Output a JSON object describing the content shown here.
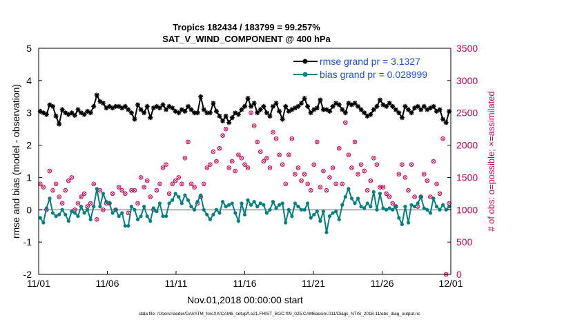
{
  "chart_data": {
    "type": "line",
    "title_line1": "Tropics 182434 / 183799 = 99.257%",
    "title_line2": "SAT_V_WIND_COMPONENT @ 400 hPa",
    "xlabel": "Nov.01,2018 00:00:00 start",
    "ylabel_left": "rmse and bias (model - observation)",
    "ylabel_right": "# of obs: o=possible; ×=assimilated",
    "footnote": "data file: /Users/raeder/DAI/ATM_forcXX/CAM6_setup/f.e21.FHIST_BGC.f09_025.CAM6assim.011/Diags_NTrS_2018-11/obs_diag_output.nc",
    "x_ticks": [
      "11/01",
      "11/06",
      "11/11",
      "11/16",
      "11/21",
      "11/26",
      "12/01"
    ],
    "x_range_days": [
      0,
      30
    ],
    "ylim_left": [
      -2,
      5
    ],
    "yticks_left": [
      "-2",
      "-1",
      "0",
      "1",
      "2",
      "3",
      "4",
      "5"
    ],
    "ylim_right": [
      0,
      3500
    ],
    "yticks_right": [
      "0",
      "500",
      "1000",
      "1500",
      "2000",
      "2500",
      "3000",
      "3500"
    ],
    "colors": {
      "rmse": "#000000",
      "bias": "#008080",
      "obs": "#cc0055",
      "zero_line": "#b0b0b0",
      "ylabel_right": "#cc0055",
      "legend_text": "#1a4fd6"
    },
    "legend": [
      {
        "label": "rmse grand pr = 3.1327",
        "series": "rmse"
      },
      {
        "label": "bias grand pr = 0.028999",
        "series": "bias"
      }
    ],
    "series": [
      {
        "name": "rmse",
        "values": [
          3.05,
          3.0,
          2.95,
          3.25,
          3.2,
          2.9,
          2.65,
          3.1,
          3.0,
          2.95,
          3.0,
          2.92,
          3.1,
          3.0,
          2.95,
          3.05,
          3.0,
          3.2,
          3.55,
          3.35,
          3.3,
          3.15,
          3.2,
          3.15,
          3.2,
          3.2,
          3.15,
          3.2,
          3.1,
          3.0,
          2.8,
          3.25,
          3.1,
          3.0,
          3.2,
          2.85,
          3.15,
          3.2,
          3.15,
          3.25,
          3.1,
          3.2,
          3.15,
          3.05,
          3.0,
          3.1,
          3.05,
          3.2,
          3.1,
          3.0,
          3.0,
          3.5,
          3.1,
          3.0,
          3.0,
          3.3,
          3.05,
          2.9,
          2.75,
          2.9,
          2.7,
          2.85,
          3.0,
          2.95,
          3.1,
          3.2,
          3.45,
          3.2,
          3.3,
          3.0,
          3.1,
          3.2,
          3.0,
          2.9,
          3.2,
          3.3,
          3.05,
          2.8,
          3.2,
          3.05,
          3.1,
          3.15,
          3.2,
          3.3,
          3.45,
          3.2,
          3.0,
          3.1,
          3.15,
          3.4,
          3.1,
          3.1,
          3.05,
          3.2,
          3.3,
          3.25,
          3.1,
          3.0,
          3.3,
          3.25,
          3.3,
          3.2,
          3.1,
          3.0,
          2.9,
          2.95,
          3.1,
          3.2,
          3.4,
          3.25,
          3.2,
          3.3,
          3.2,
          3.1,
          3.0,
          2.85,
          3.2,
          3.1,
          3.0,
          3.15,
          3.2,
          3.1,
          3.2,
          3.1,
          3.15,
          3.2,
          3.05,
          3.1,
          2.8,
          2.7,
          3.05
        ]
      },
      {
        "name": "bias",
        "values": [
          -0.25,
          -0.4,
          0.05,
          0.35,
          -0.1,
          -0.2,
          -0.15,
          0.0,
          -0.15,
          -0.35,
          -0.05,
          -0.1,
          -0.2,
          0.1,
          -0.1,
          0.0,
          -0.3,
          0.1,
          0.65,
          0.1,
          0.5,
          0.25,
          0.2,
          -0.1,
          0.0,
          -0.2,
          -0.1,
          -0.5,
          -0.5,
          0.1,
          0.0,
          -0.3,
          -0.2,
          0.1,
          -0.2,
          -0.35,
          0.05,
          -0.05,
          0.2,
          -0.2,
          -0.2,
          0.2,
          0.3,
          0.5,
          0.4,
          0.2,
          0.45,
          0.3,
          0.1,
          0.0,
          0.25,
          0.45,
          0.0,
          -0.15,
          -0.3,
          -0.15,
          0.0,
          -0.1,
          0.25,
          0.1,
          0.15,
          0.2,
          -0.1,
          -0.35,
          0.2,
          -0.15,
          0.3,
          0.15,
          0.25,
          0.1,
          0.2,
          0.15,
          -0.1,
          0.0,
          0.25,
          0.05,
          0.15,
          0.2,
          -0.4,
          0.0,
          -0.2,
          0.2,
          0.1,
          0.0,
          0.0,
          0.2,
          -0.25,
          -0.15,
          -0.05,
          -0.35,
          -0.05,
          -0.7,
          -0.2,
          -0.1,
          -0.05,
          -0.3,
          0.15,
          0.4,
          0.65,
          0.35,
          0.2,
          0.35,
          0.1,
          0.05,
          0.2,
          0.1,
          0.55,
          0.0,
          0.5,
          0.05,
          0.0,
          0.05,
          0.0,
          0.1,
          -0.25,
          -0.45,
          0.1,
          -0.4,
          0.15,
          0.1,
          0.2,
          0.4,
          0.05,
          0.0,
          -0.1,
          0.35,
          0.1,
          0.0,
          0.15,
          0.0,
          0.1
        ]
      },
      {
        "name": "obs_possible",
        "values": [
          1400,
          1350,
          1000,
          1600,
          1300,
          1400,
          1200,
          1100,
          1300,
          1450,
          1500,
          1000,
          1100,
          1200,
          1250,
          1050,
          1100,
          1400,
          850,
          1300,
          1000,
          1100,
          1100,
          1250,
          1000,
          1350,
          1300,
          1250,
          950,
          1300,
          1300,
          1100,
          1500,
          1350,
          1450,
          1200,
          1000,
          1300,
          1400,
          1650,
          1700,
          1250,
          1400,
          1450,
          1500,
          1400,
          1800,
          2050,
          1400,
          1350,
          1100,
          1200,
          1400,
          1650,
          1700,
          1900,
          1750,
          1950,
          2150,
          2250,
          1650,
          1750,
          1600,
          1850,
          1800,
          1700,
          1650,
          2500,
          2300,
          2050,
          1900,
          1750,
          1800,
          1650,
          2200,
          2100,
          1850,
          1700,
          1400,
          1850,
          2100,
          1550,
          1650,
          1450,
          1550,
          1400,
          1300,
          1700,
          2050,
          1350,
          1600,
          1300,
          1500,
          1650,
          1400,
          1950,
          1400,
          2350,
          1850,
          1650,
          2050,
          1550,
          1700,
          1600,
          1300,
          1450,
          1800,
          1700,
          1350,
          1350,
          1250,
          1200,
          1100,
          1050,
          1550,
          1700,
          1500,
          1300,
          1700,
          1200,
          1050,
          1200,
          1550,
          1450,
          1200,
          1750,
          1400,
          1250,
          2100,
          0,
          1100
        ]
      }
    ]
  }
}
